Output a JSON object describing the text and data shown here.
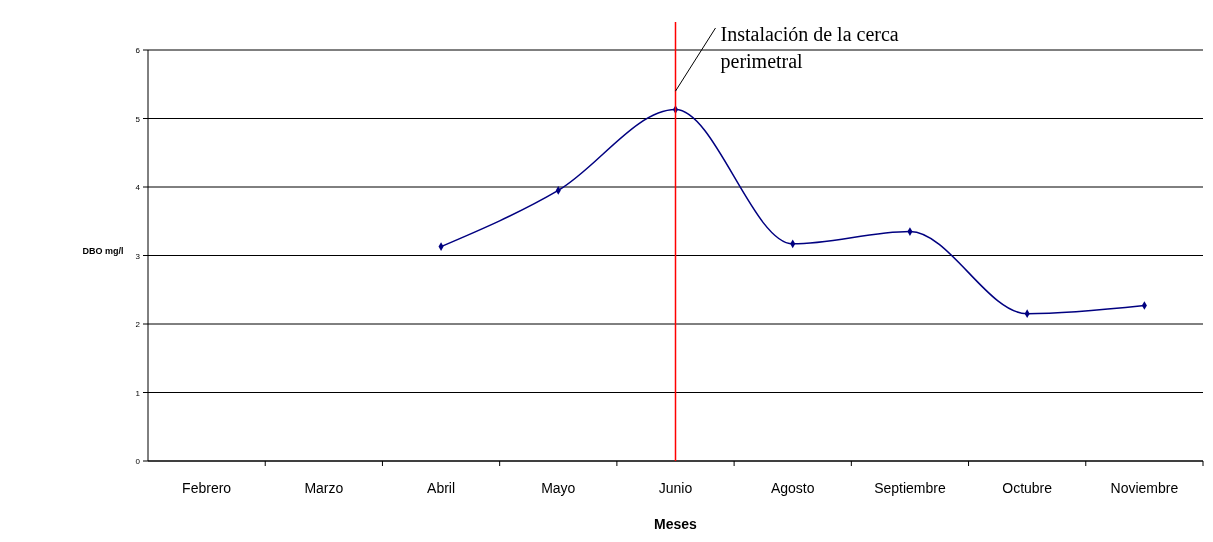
{
  "chart_data": {
    "type": "line",
    "xlabel": "Meses",
    "ylabel": "DBO mg/l",
    "categories": [
      "Febrero",
      "Marzo",
      "Abril",
      "Mayo",
      "Junio",
      "Agosto",
      "Septiembre",
      "Octubre",
      "Noviembre"
    ],
    "series": [
      {
        "color": "#000080",
        "values": [
          null,
          null,
          3.13,
          3.95,
          5.13,
          3.17,
          3.35,
          2.15,
          2.27
        ]
      }
    ],
    "ylim": [
      0,
      6
    ],
    "yticks": [
      0,
      1,
      2,
      3,
      4,
      5,
      6
    ],
    "grid": "y",
    "marker": "diamond",
    "line_style": "solid",
    "ref_lines": [
      {
        "axis": "x",
        "value": "Junio",
        "color": "#ff0000",
        "label": "Instalación de la cerca perimetral"
      }
    ]
  }
}
